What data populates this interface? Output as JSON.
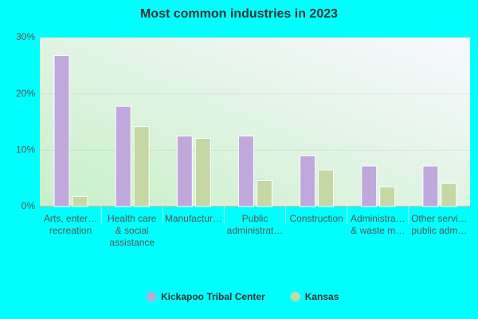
{
  "chart_data": {
    "type": "bar",
    "title": "Most common industries in 2023",
    "categories": [
      "Arts, enter…\nrecreation",
      "Health care\n& social\nassistance",
      "Manufactur…",
      "Public\nadministrat…",
      "Construction",
      "Administra…\n& waste m…",
      "Other servi…\npublic adm…"
    ],
    "series": [
      {
        "name": "Kickapoo Tribal Center",
        "color": "#c0a8dc",
        "values": [
          26.8,
          17.8,
          12.5,
          12.5,
          9.0,
          7.2,
          7.2
        ]
      },
      {
        "name": "Kansas",
        "color": "#c5d8a4",
        "values": [
          1.8,
          14.2,
          12.1,
          4.6,
          6.5,
          3.5,
          4.1
        ]
      }
    ],
    "ylim": [
      0,
      30
    ],
    "yticks": [
      {
        "value": 0,
        "label": "0%"
      },
      {
        "value": 10,
        "label": "10%"
      },
      {
        "value": 20,
        "label": "20%"
      },
      {
        "value": 30,
        "label": "30%"
      }
    ],
    "grid": true,
    "legend": "bottom"
  }
}
